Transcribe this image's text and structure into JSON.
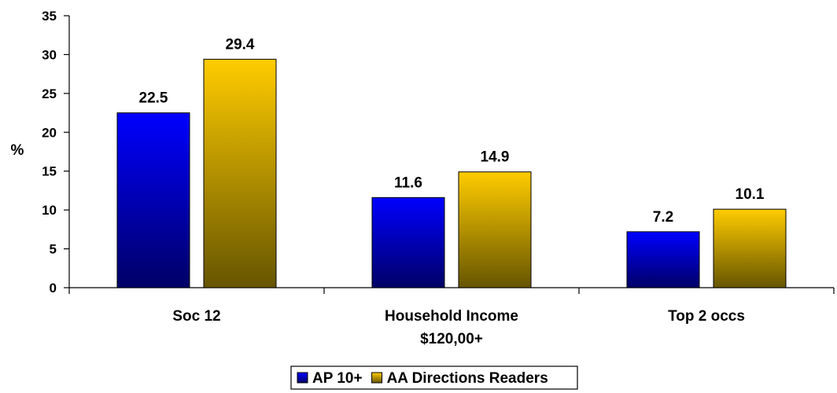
{
  "chart_data": {
    "type": "bar",
    "title": "",
    "xlabel": "",
    "ylabel": "%",
    "ylim": [
      0,
      35
    ],
    "yticks": [
      "0",
      "5",
      "10",
      "15",
      "20",
      "25",
      "30",
      "35"
    ],
    "categories": [
      [
        "Soc 12"
      ],
      [
        "Household Income",
        "$120,00+"
      ],
      [
        "Top 2 occs"
      ]
    ],
    "series": [
      {
        "name": "AP 10+",
        "values": [
          22.5,
          11.6,
          7.2
        ],
        "labels": [
          "22.5",
          "11.6",
          "7.2"
        ],
        "color_top": "#0000ff",
        "color_bottom": "#000066"
      },
      {
        "name": "AA Directions Readers",
        "values": [
          29.4,
          14.9,
          10.1
        ],
        "labels": [
          "29.4",
          "14.9",
          "10.1"
        ],
        "color_top": "#ffcc00",
        "color_bottom": "#665500"
      }
    ],
    "grid": false,
    "legend_position": "bottom-center"
  }
}
